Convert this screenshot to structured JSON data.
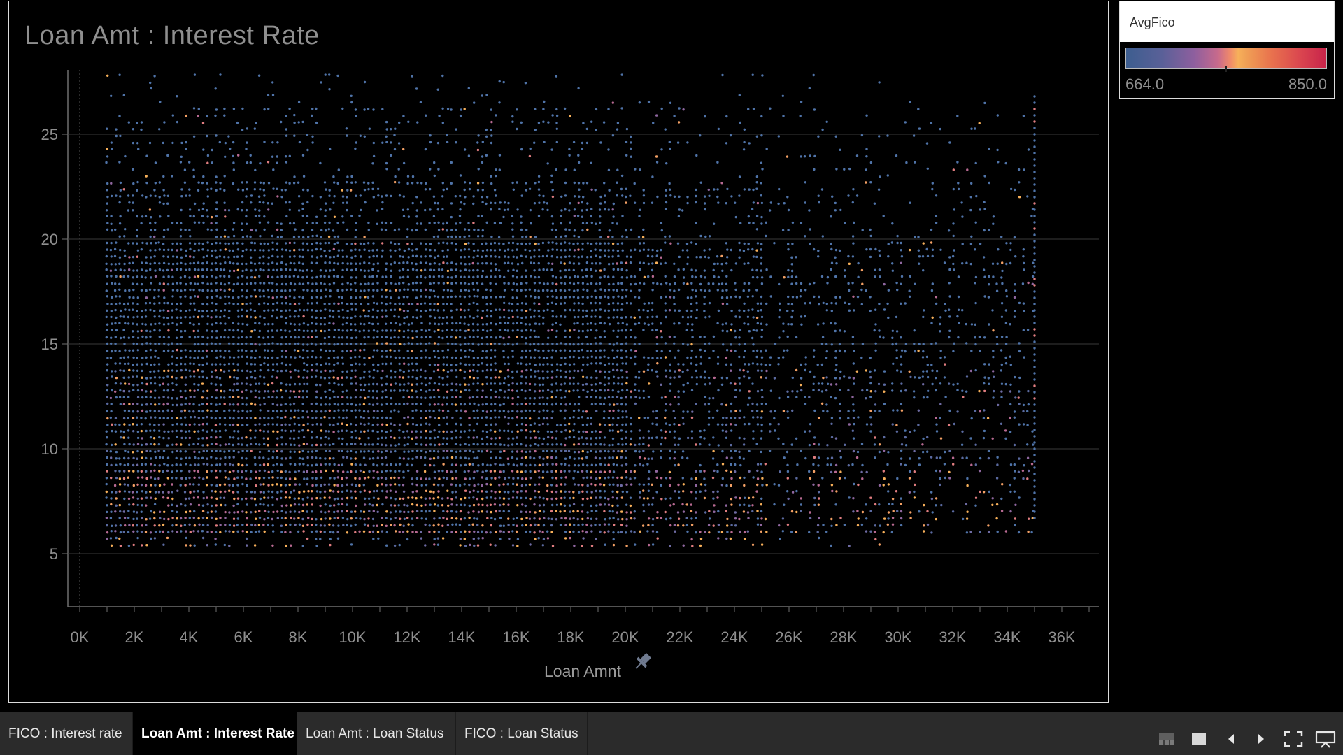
{
  "chart_title": "Loan Amt : Interest Rate",
  "chart_data": {
    "type": "scatter",
    "title": "Loan Amt : Interest Rate",
    "xlabel": "Loan Amnt",
    "ylabel": "",
    "xlim": [
      0,
      36000
    ],
    "ylim": [
      5,
      25
    ],
    "x_ticks": [
      "0K",
      "2K",
      "4K",
      "6K",
      "8K",
      "10K",
      "12K",
      "14K",
      "16K",
      "18K",
      "20K",
      "22K",
      "24K",
      "26K",
      "28K",
      "30K",
      "32K",
      "34K",
      "36K"
    ],
    "y_ticks": [
      "5",
      "10",
      "15",
      "20",
      "25"
    ],
    "x_range_of_points": [
      1000,
      35000
    ],
    "y_range_of_points": [
      5.4,
      27.9
    ],
    "color_by": "AvgFico",
    "grid": "horizontal"
  },
  "legend": {
    "title": "AvgFico",
    "min_label": "664.0",
    "max_label": "850.0",
    "low_color": "#3d5e8f",
    "mid_color": "#f7b05a",
    "high_color": "#c8244a"
  },
  "tabs": [
    {
      "label": "FICO : Interest rate",
      "active": false
    },
    {
      "label": "Loan Amt : Interest Rate",
      "active": true
    },
    {
      "label": "Loan Amt : Loan Status",
      "active": false
    },
    {
      "label": "FICO : Loan Status",
      "active": false
    }
  ],
  "toolbar": {
    "icons": [
      "thumbnail-icon",
      "single-view-icon",
      "prev-icon",
      "next-icon",
      "fullscreen-icon",
      "present-icon"
    ]
  },
  "colors": {
    "background": "#000000",
    "point_blue": "#4f73a8",
    "grid": "#3a3a3a",
    "text": "#8f8f8f"
  }
}
